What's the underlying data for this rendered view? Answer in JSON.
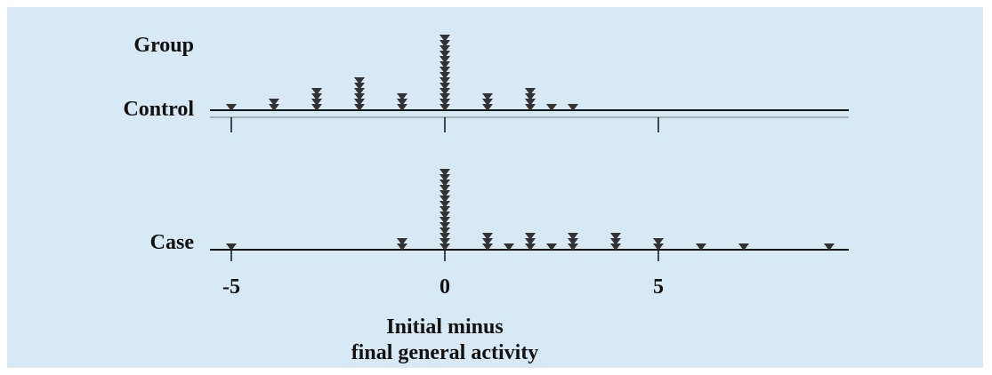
{
  "colors": {
    "background": "#d6e9f5",
    "marker": "#333333",
    "axis": "#111111"
  },
  "chart_data": {
    "type": "dot-strip",
    "group_label": "Group",
    "xlabel_lines": [
      "Initial minus",
      "final general activity"
    ],
    "xticks": [
      -5,
      0,
      5
    ],
    "xlim": [
      -5.3,
      9.6
    ],
    "marker": "inverted-triangle",
    "series": [
      {
        "name": "Control",
        "points": [
          {
            "x": -5,
            "count": 1
          },
          {
            "x": -4,
            "count": 2
          },
          {
            "x": -3,
            "count": 4
          },
          {
            "x": -2,
            "count": 6
          },
          {
            "x": -1,
            "count": 3
          },
          {
            "x": 0,
            "count": 14
          },
          {
            "x": 1,
            "count": 3
          },
          {
            "x": 2,
            "count": 4
          },
          {
            "x": 2.5,
            "count": 1
          },
          {
            "x": 3,
            "count": 1
          }
        ]
      },
      {
        "name": "Case",
        "points": [
          {
            "x": -5,
            "count": 1
          },
          {
            "x": -1,
            "count": 2
          },
          {
            "x": 0,
            "count": 15
          },
          {
            "x": 1,
            "count": 3
          },
          {
            "x": 1.5,
            "count": 1
          },
          {
            "x": 2,
            "count": 3
          },
          {
            "x": 2.5,
            "count": 1
          },
          {
            "x": 3,
            "count": 3
          },
          {
            "x": 4,
            "count": 3
          },
          {
            "x": 5,
            "count": 2
          },
          {
            "x": 6,
            "count": 1
          },
          {
            "x": 7,
            "count": 1
          },
          {
            "x": 9,
            "count": 1
          }
        ]
      }
    ]
  }
}
